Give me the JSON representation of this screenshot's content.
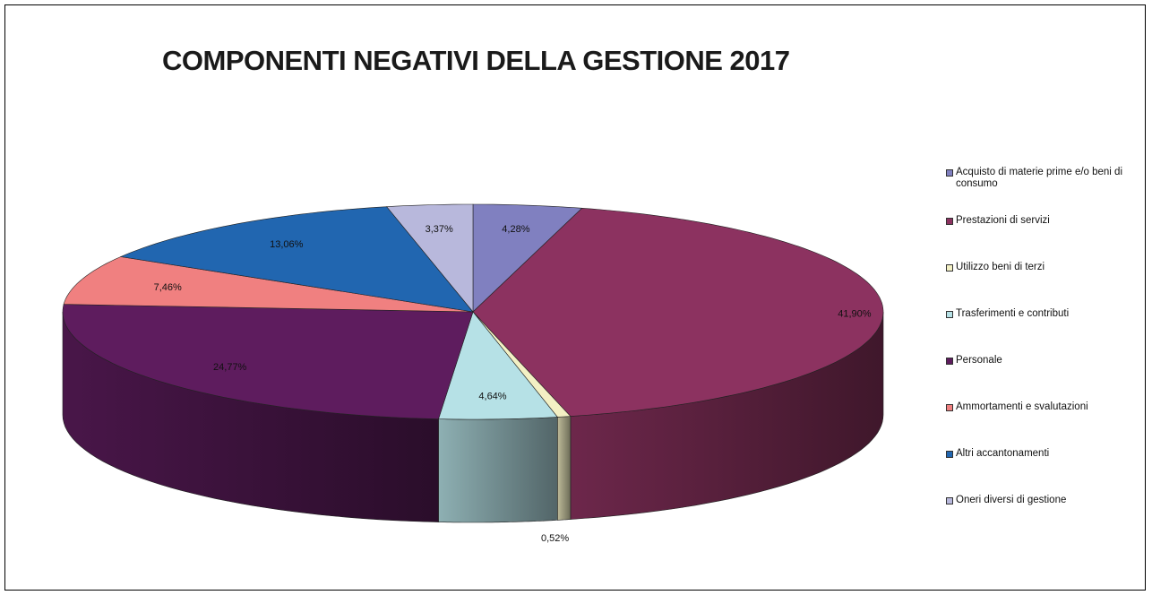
{
  "chart_data": {
    "type": "pie",
    "title": "COMPONENTI NEGATIVI DELLA GESTIONE 2017",
    "slices": [
      {
        "name": "Acquisto di materie prime e/o beni di consumo",
        "value": 4.28,
        "label": "4,28%",
        "color": "#8080C0"
      },
      {
        "name": "Prestazioni di servizi",
        "value": 41.9,
        "label": "41,90%",
        "color": "#8C3260"
      },
      {
        "name": "Utilizzo  beni di terzi",
        "value": 0.52,
        "label": "0,52%",
        "color": "#F3F0C4"
      },
      {
        "name": "Trasferimenti e contributi",
        "value": 4.64,
        "label": "4,64%",
        "color": "#B6E1E6"
      },
      {
        "name": "Personale",
        "value": 24.77,
        "label": "24,77%",
        "color": "#5E1C5E"
      },
      {
        "name": "Ammortamenti e svalutazioni",
        "value": 7.46,
        "label": "7,46%",
        "color": "#F08080"
      },
      {
        "name": "Altri accantonamenti",
        "value": 13.06,
        "label": "13,06%",
        "color": "#2166B0"
      },
      {
        "name": "Oneri diversi di gestione",
        "value": 3.37,
        "label": "3,37%",
        "color": "#B8B8DC"
      }
    ],
    "legend_position": "right"
  },
  "legend": {
    "items": [
      {
        "label": "Acquisto di materie prime e/o beni di consumo",
        "color": "#8080C0"
      },
      {
        "label": "Prestazioni di servizi",
        "color": "#8C3260"
      },
      {
        "label": "Utilizzo  beni di terzi",
        "color": "#F3F0C4"
      },
      {
        "label": "Trasferimenti e contributi",
        "color": "#B6E1E6"
      },
      {
        "label": "Personale",
        "color": "#5E1C5E"
      },
      {
        "label": "Ammortamenti e svalutazioni",
        "color": "#F08080"
      },
      {
        "label": "Altri accantonamenti",
        "color": "#2166B0"
      },
      {
        "label": "Oneri diversi di gestione",
        "color": "#B8B8DC"
      }
    ]
  }
}
